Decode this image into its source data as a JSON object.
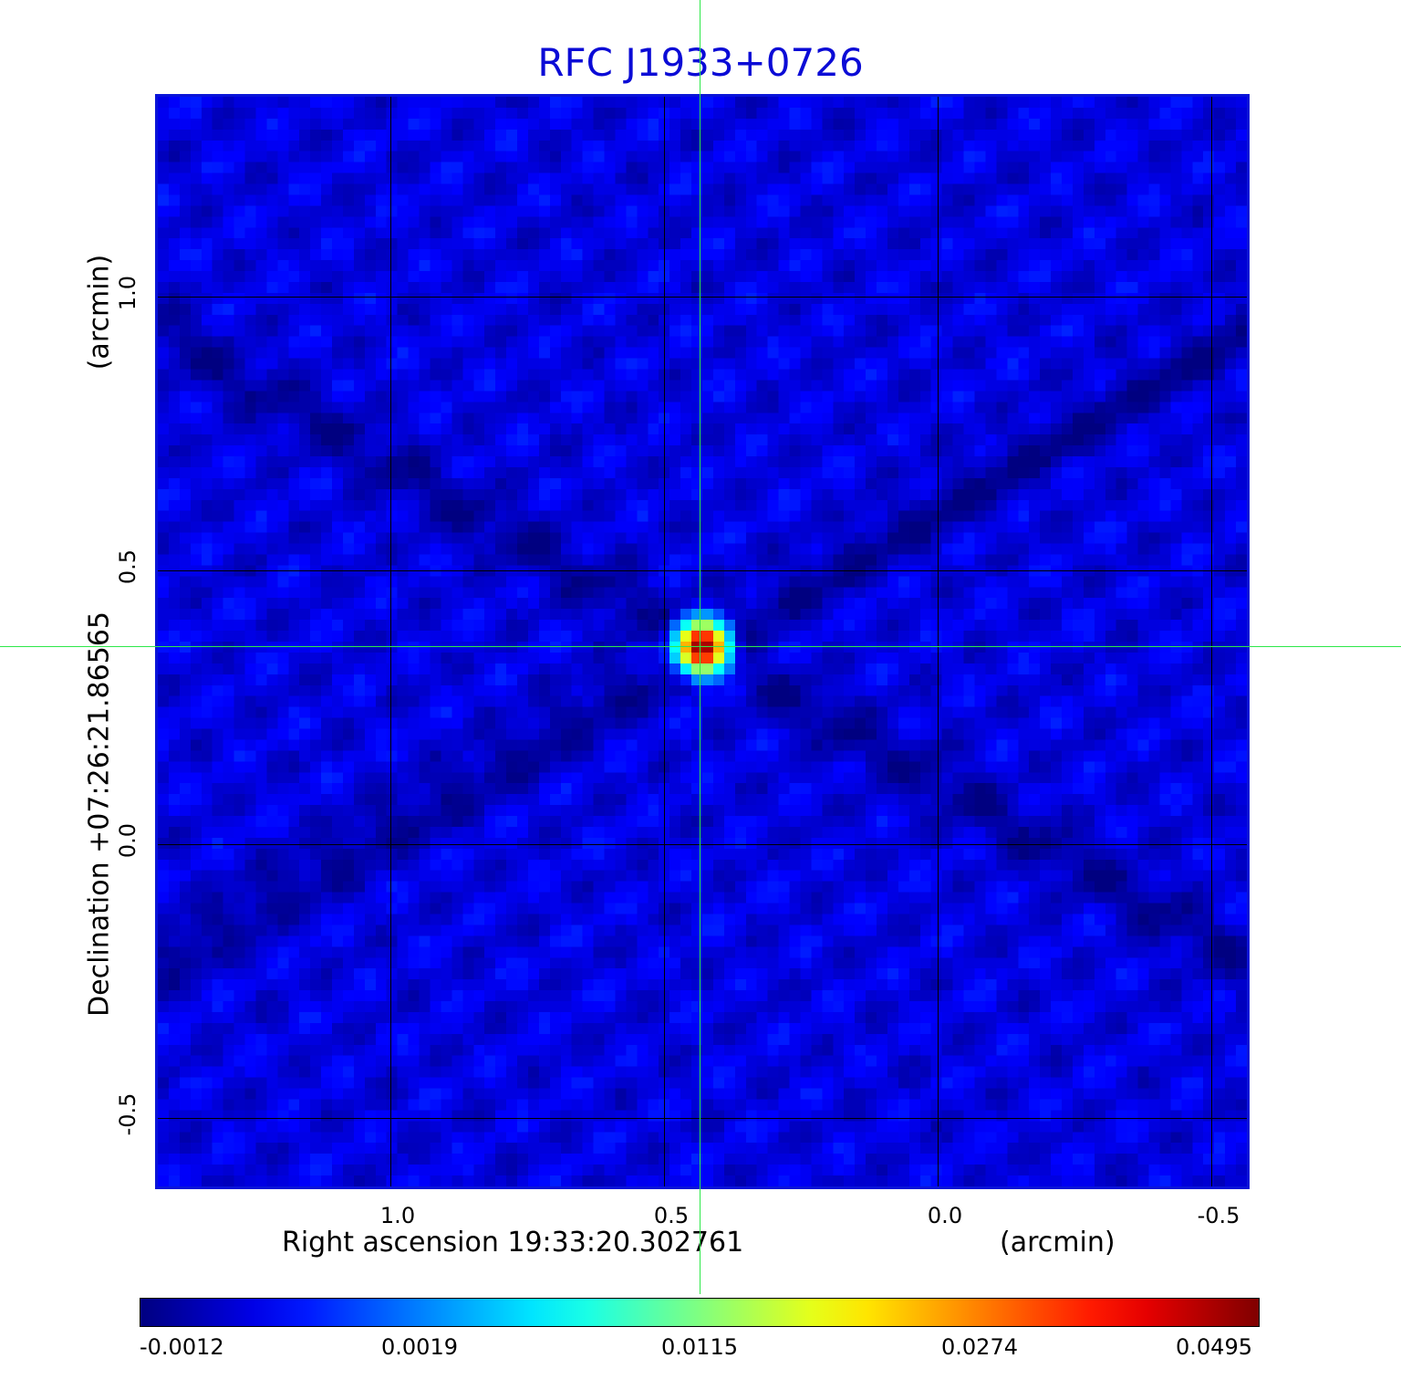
{
  "chart_data": {
    "type": "heatmap",
    "title": "RFC J1933+0726",
    "xlabel": "Right ascension  19:33:20.302761",
    "xunit": "(arcmin)",
    "ylabel": "Declination  +07:26:21.86565",
    "yunit": "(arcmin)",
    "x_ticks": [
      "1.0",
      "0.5",
      "0.0",
      "-0.5"
    ],
    "y_ticks": [
      "1.0",
      "0.5",
      "0.0",
      "-0.5"
    ],
    "xlim": [
      1.43,
      -0.57
    ],
    "ylim": [
      -0.63,
      1.37
    ],
    "grid": true,
    "colormap": "jet",
    "colorbar": {
      "ticks": [
        "-0.0012",
        "0.0019",
        "0.0115",
        "0.0274",
        "0.0495"
      ],
      "min": -0.0012,
      "max": 0.0495
    },
    "source_peak": {
      "x": 0.44,
      "y": 0.37,
      "value": 0.0495
    },
    "background_level": 0.0,
    "crosshair": {
      "x": 0.44,
      "y": 0.37
    },
    "colors": {
      "title": "#0b0bd6",
      "frame": "#0a14d8",
      "crosshair": "#2ee84a"
    }
  }
}
